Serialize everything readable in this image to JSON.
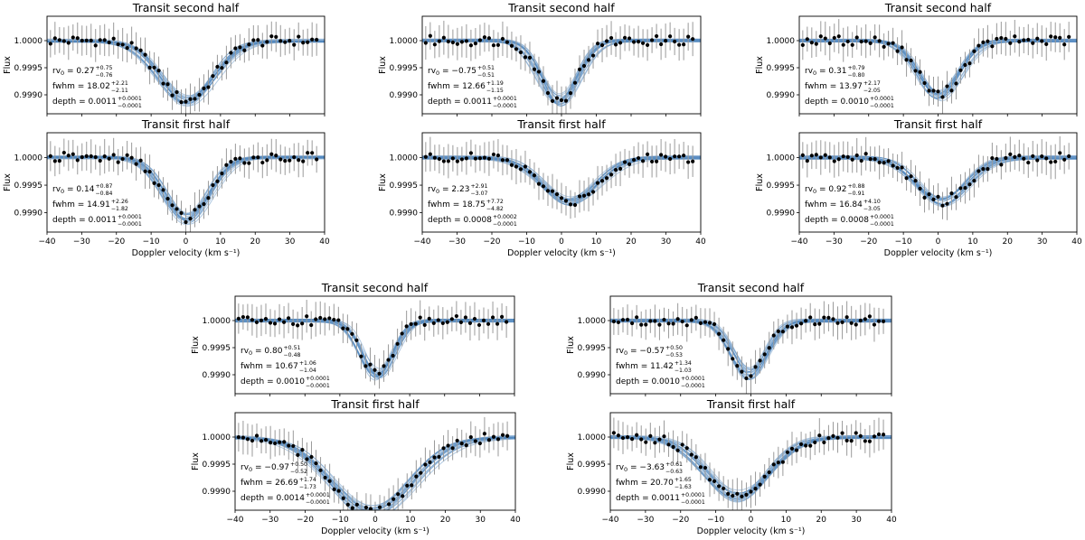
{
  "colors": {
    "model": "#4f88bf",
    "points": "#000000",
    "errorbars": "#9a9a9a"
  },
  "chart_data": [
    {
      "id": "p1",
      "type": "line",
      "title": "Transit second half",
      "xlabel": "",
      "ylabel": "Flux",
      "xlim": [
        -40,
        40
      ],
      "ylim": [
        0.99865,
        1.00045
      ],
      "yticks": [
        "1.0000",
        "0.9995",
        "0.9990"
      ],
      "rv0": 0.27,
      "fwhm": 18.02,
      "depth": 0.0011,
      "ann": [
        {
          "name": "rv",
          "label": "rv",
          "sub": "0",
          "value": " = 0.27",
          "up": "+0.75",
          "lo": "−0.76"
        },
        {
          "name": "fwhm",
          "label": "fwhm",
          "value": " = 18.02",
          "up": "+2.21",
          "lo": "−2.11"
        },
        {
          "name": "depth",
          "label": "depth",
          "value": " = 0.0011",
          "up": "+0.0001",
          "lo": "−0.0001"
        }
      ]
    },
    {
      "id": "p2",
      "type": "line",
      "title": "Transit second half",
      "xlabel": "",
      "ylabel": "Flux",
      "xlim": [
        -40,
        40
      ],
      "ylim": [
        0.99865,
        1.00045
      ],
      "yticks": [
        "1.0000",
        "0.9995",
        "0.9990"
      ],
      "rv0": -0.75,
      "fwhm": 12.66,
      "depth": 0.0011,
      "ann": [
        {
          "name": "rv",
          "label": "rv",
          "sub": "0",
          "value": " = −0.75",
          "up": "+0.51",
          "lo": "−0.51"
        },
        {
          "name": "fwhm",
          "label": "fwhm",
          "value": " = 12.66",
          "up": "+1.19",
          "lo": "−1.15"
        },
        {
          "name": "depth",
          "label": "depth",
          "value": " = 0.0011",
          "up": "+0.0001",
          "lo": "−0.0001"
        }
      ]
    },
    {
      "id": "p3",
      "type": "line",
      "title": "Transit second half",
      "xlabel": "",
      "ylabel": "Flux",
      "xlim": [
        -40,
        40
      ],
      "ylim": [
        0.99865,
        1.00045
      ],
      "yticks": [
        "1.0000",
        "0.9995",
        "0.9990"
      ],
      "rv0": 0.31,
      "fwhm": 13.97,
      "depth": 0.001,
      "ann": [
        {
          "name": "rv",
          "label": "rv",
          "sub": "0",
          "value": " = 0.31",
          "up": "+0.79",
          "lo": "−0.80"
        },
        {
          "name": "fwhm",
          "label": "fwhm",
          "value": " = 13.97",
          "up": "+2.17",
          "lo": "−2.05"
        },
        {
          "name": "depth",
          "label": "depth",
          "value": " = 0.0010",
          "up": "+0.0001",
          "lo": "−0.0001"
        }
      ]
    },
    {
      "id": "p4",
      "type": "line",
      "title": "Transit first half",
      "xlabel": "Doppler velocity (km s⁻¹)",
      "ylabel": "Flux",
      "xlim": [
        -40,
        40
      ],
      "ylim": [
        0.99865,
        1.00045
      ],
      "yticks": [
        "1.0000",
        "0.9995",
        "0.9990"
      ],
      "xticks": [
        "−40",
        "−30",
        "−20",
        "−10",
        "0",
        "10",
        "20",
        "30",
        "40"
      ],
      "rv0": 0.14,
      "fwhm": 14.91,
      "depth": 0.0011,
      "ann": [
        {
          "name": "rv",
          "label": "rv",
          "sub": "0",
          "value": " = 0.14",
          "up": "+0.87",
          "lo": "−0.84"
        },
        {
          "name": "fwhm",
          "label": "fwhm",
          "value": " = 14.91",
          "up": "+2.26",
          "lo": "−1.82"
        },
        {
          "name": "depth",
          "label": "depth",
          "value": " = 0.0011",
          "up": "+0.0001",
          "lo": "−0.0001"
        }
      ]
    },
    {
      "id": "p5",
      "type": "line",
      "title": "Transit first half",
      "xlabel": "Doppler velocity (km s⁻¹)",
      "ylabel": "Flux",
      "xlim": [
        -40,
        40
      ],
      "ylim": [
        0.99865,
        1.00045
      ],
      "yticks": [
        "1.0000",
        "0.9995",
        "0.9990"
      ],
      "xticks": [
        "−40",
        "−30",
        "−20",
        "−10",
        "0",
        "10",
        "20",
        "30",
        "40"
      ],
      "rv0": 2.23,
      "fwhm": 18.75,
      "depth": 0.0008,
      "ann": [
        {
          "name": "rv",
          "label": "rv",
          "sub": "0",
          "value": " = 2.23",
          "up": "+2.91",
          "lo": "−3.07"
        },
        {
          "name": "fwhm",
          "label": "fwhm",
          "value": " = 18.75",
          "up": "+7.72",
          "lo": "−4.82"
        },
        {
          "name": "depth",
          "label": "depth",
          "value": " = 0.0008",
          "up": "+0.0002",
          "lo": "−0.0001"
        }
      ]
    },
    {
      "id": "p6",
      "type": "line",
      "title": "Transit first half",
      "xlabel": "Doppler velocity (km s⁻¹)",
      "ylabel": "Flux",
      "xlim": [
        -40,
        40
      ],
      "ylim": [
        0.99865,
        1.00045
      ],
      "yticks": [
        "1.0000",
        "0.9995",
        "0.9990"
      ],
      "xticks": [
        "−40",
        "−30",
        "−20",
        "−10",
        "0",
        "10",
        "20",
        "30",
        "40"
      ],
      "rv0": 0.92,
      "fwhm": 16.84,
      "depth": 0.0008,
      "ann": [
        {
          "name": "rv",
          "label": "rv",
          "sub": "0",
          "value": " = 0.92",
          "up": "+0.88",
          "lo": "−0.91"
        },
        {
          "name": "fwhm",
          "label": "fwhm",
          "value": " = 16.84",
          "up": "+4.10",
          "lo": "−3.05"
        },
        {
          "name": "depth",
          "label": "depth",
          "value": " = 0.0008",
          "up": "+0.0001",
          "lo": "−0.0001"
        }
      ]
    },
    {
      "id": "p7",
      "type": "line",
      "title": "Transit second half",
      "xlabel": "",
      "ylabel": "Flux",
      "xlim": [
        -40,
        40
      ],
      "ylim": [
        0.99865,
        1.00045
      ],
      "yticks": [
        "1.0000",
        "0.9995",
        "0.9990"
      ],
      "rv0": 0.8,
      "fwhm": 10.67,
      "depth": 0.001,
      "ann": [
        {
          "name": "rv",
          "label": "rv",
          "sub": "0",
          "value": " = 0.80",
          "up": "+0.51",
          "lo": "−0.48"
        },
        {
          "name": "fwhm",
          "label": "fwhm",
          "value": " = 10.67",
          "up": "+1.06",
          "lo": "−1.04"
        },
        {
          "name": "depth",
          "label": "depth",
          "value": " = 0.0010",
          "up": "+0.0001",
          "lo": "−0.0001"
        }
      ]
    },
    {
      "id": "p8",
      "type": "line",
      "title": "Transit second half",
      "xlabel": "",
      "ylabel": "Flux",
      "xlim": [
        -40,
        40
      ],
      "ylim": [
        0.99865,
        1.00045
      ],
      "yticks": [
        "1.0000",
        "0.9995",
        "0.9990"
      ],
      "rv0": -0.57,
      "fwhm": 11.42,
      "depth": 0.001,
      "ann": [
        {
          "name": "rv",
          "label": "rv",
          "sub": "0",
          "value": " = −0.57",
          "up": "+0.50",
          "lo": "−0.53"
        },
        {
          "name": "fwhm",
          "label": "fwhm",
          "value": " = 11.42",
          "up": "+1.34",
          "lo": "−1.03"
        },
        {
          "name": "depth",
          "label": "depth",
          "value": " = 0.0010",
          "up": "+0.0001",
          "lo": "−0.0001"
        }
      ]
    },
    {
      "id": "p9",
      "type": "line",
      "title": "Transit first half",
      "xlabel": "Doppler velocity (km s⁻¹)",
      "ylabel": "Flux",
      "xlim": [
        -40,
        40
      ],
      "ylim": [
        0.99865,
        1.00045
      ],
      "yticks": [
        "1.0000",
        "0.9995",
        "0.9990"
      ],
      "xticks": [
        "−40",
        "−30",
        "−20",
        "−10",
        "0",
        "10",
        "20",
        "30",
        "40"
      ],
      "rv0": -0.97,
      "fwhm": 26.69,
      "depth": 0.0014,
      "ann": [
        {
          "name": "rv",
          "label": "rv",
          "sub": "0",
          "value": " = −0.97",
          "up": "+0.50",
          "lo": "−0.52"
        },
        {
          "name": "fwhm",
          "label": "fwhm",
          "value": " = 26.69",
          "up": "+1.74",
          "lo": "−1.73"
        },
        {
          "name": "depth",
          "label": "depth",
          "value": " = 0.0014",
          "up": "+0.0001",
          "lo": "−0.0001"
        }
      ]
    },
    {
      "id": "p10",
      "type": "line",
      "title": "Transit first half",
      "xlabel": "Doppler velocity (km s⁻¹)",
      "ylabel": "Flux",
      "xlim": [
        -40,
        40
      ],
      "ylim": [
        0.99865,
        1.00045
      ],
      "yticks": [
        "1.0000",
        "0.9995",
        "0.9990"
      ],
      "xticks": [
        "−40",
        "−30",
        "−20",
        "−10",
        "0",
        "10",
        "20",
        "30",
        "40"
      ],
      "rv0": -3.63,
      "fwhm": 20.7,
      "depth": 0.0011,
      "ann": [
        {
          "name": "rv",
          "label": "rv",
          "sub": "0",
          "value": " = −3.63",
          "up": "+0.61",
          "lo": "−0.63"
        },
        {
          "name": "fwhm",
          "label": "fwhm",
          "value": " = 20.70",
          "up": "+1.65",
          "lo": "−1.63"
        },
        {
          "name": "depth",
          "label": "depth",
          "value": " = 0.0011",
          "up": "+0.0001",
          "lo": "−0.0001"
        }
      ]
    }
  ]
}
